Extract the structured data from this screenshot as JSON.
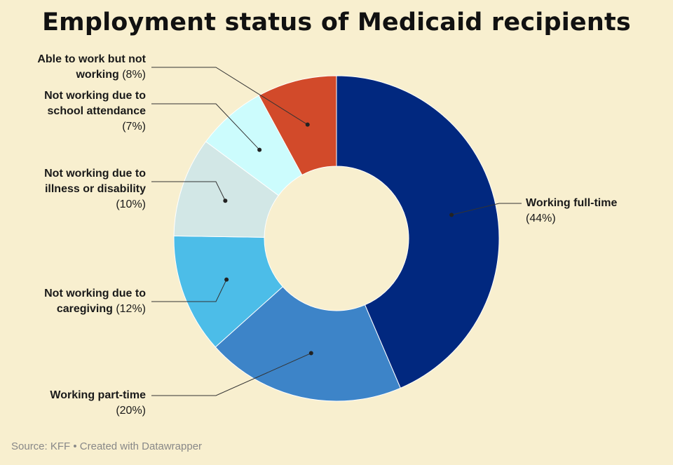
{
  "title": "Employment status of Medicaid recipients",
  "source": "Source: KFF • Created with Datawrapper",
  "chart_data": {
    "type": "pie",
    "variant": "donut",
    "title": "Employment status of Medicaid recipients",
    "slices": [
      {
        "label": "Working full-time",
        "lines": [
          "Working full-time"
        ],
        "pct_text": "(44%)",
        "value": 44,
        "color": "#01287f"
      },
      {
        "label": "Working part-time",
        "lines": [
          "Working part-time"
        ],
        "pct_text": "(20%)",
        "value": 20,
        "color": "#3d84c8"
      },
      {
        "label": "Not working due to caregiving",
        "lines": [
          "Not working due to",
          "caregiving"
        ],
        "pct_text": "(12%)",
        "value": 12,
        "color": "#4cbde8"
      },
      {
        "label": "Not working due to illness or disability",
        "lines": [
          "Not working due to",
          "illness or disability"
        ],
        "pct_text": "(10%)",
        "value": 10,
        "color": "#d2e7e6"
      },
      {
        "label": "Not working due to school attendance",
        "lines": [
          "Not working due to",
          "school attendance"
        ],
        "pct_text": "(7%)",
        "value": 7,
        "color": "#ccfcfd"
      },
      {
        "label": "Able to work but not working",
        "lines": [
          "Able to work but not",
          "working"
        ],
        "pct_text": "(8%)",
        "value": 8,
        "color": "#d24a2a"
      }
    ]
  }
}
